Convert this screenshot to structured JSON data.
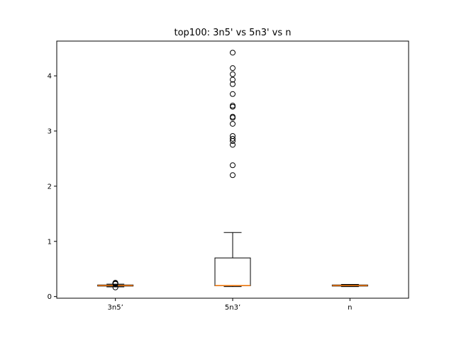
{
  "chart_data": {
    "type": "box",
    "title": "top100: 3n5' vs 5n3' vs n",
    "xlabel": "",
    "ylabel": "",
    "categories": [
      "3n5’",
      "5n3’",
      "n"
    ],
    "ylim": [
      -0.03,
      4.63
    ],
    "yticks": [
      0,
      1,
      2,
      3,
      4
    ],
    "grid": false,
    "series": [
      {
        "category": "3n5’",
        "whisker_low": 0.175,
        "q1": 0.19,
        "median": 0.2,
        "q3": 0.21,
        "whisker_high": 0.225,
        "outliers": [
          0.165,
          0.23,
          0.235,
          0.24,
          0.245,
          0.25
        ]
      },
      {
        "category": "5n3’",
        "whisker_low": 0.18,
        "q1": 0.195,
        "median": 0.2,
        "q3": 0.7,
        "whisker_high": 1.16,
        "outliers": [
          2.2,
          2.38,
          2.75,
          2.82,
          2.86,
          2.91,
          3.13,
          3.24,
          3.26,
          3.44,
          3.46,
          3.67,
          3.85,
          3.93,
          4.03,
          4.14,
          4.42
        ]
      },
      {
        "category": "n",
        "whisker_low": 0.18,
        "q1": 0.19,
        "median": 0.2,
        "q3": 0.21,
        "whisker_high": 0.22,
        "outliers": []
      }
    ],
    "colors": {
      "box": "#000000",
      "median": "#ff7f0e",
      "outlier": "#000000"
    }
  }
}
